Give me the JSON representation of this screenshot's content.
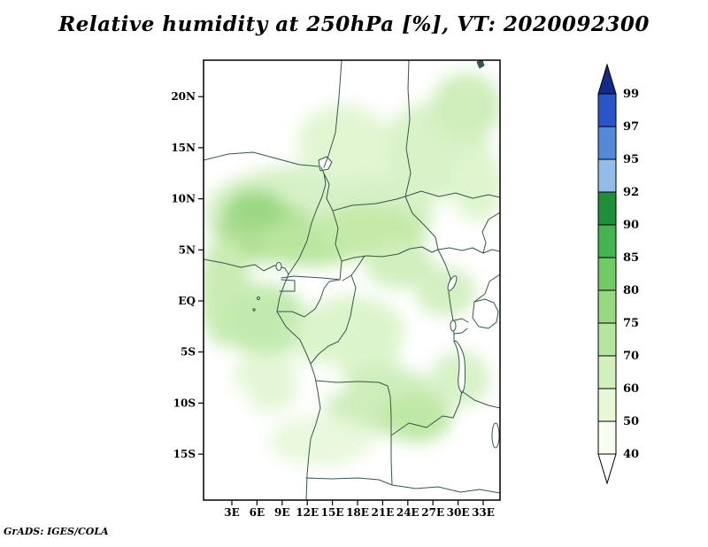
{
  "header": {
    "title": "Relative humidity at 250hPa [%], VT: 2020092300"
  },
  "footer": {
    "credit": "GrADS: IGES/COLA"
  },
  "chart_data": {
    "type": "heatmap",
    "title": "Relative humidity at 250hPa [%], VT: 2020092300",
    "variable": "Relative humidity",
    "level": "250hPa",
    "units": "%",
    "valid_time": "2020092300",
    "x_axis": {
      "tick_labels": [
        "3E",
        "6E",
        "9E",
        "12E",
        "15E",
        "18E",
        "21E",
        "24E",
        "27E",
        "30E",
        "33E"
      ],
      "tick_lons": [
        3,
        6,
        9,
        12,
        15,
        18,
        21,
        24,
        27,
        30,
        33
      ]
    },
    "y_axis": {
      "tick_labels": [
        "20N",
        "15N",
        "10N",
        "5N",
        "EQ",
        "5S",
        "10S",
        "15S"
      ],
      "tick_lats": [
        20,
        15,
        10,
        5,
        0,
        -5,
        -10,
        -15
      ]
    },
    "colorbar": {
      "position": "right",
      "tick_labels": [
        "99",
        "97",
        "95",
        "92",
        "90",
        "85",
        "80",
        "75",
        "70",
        "60",
        "50",
        "40"
      ],
      "levels": [
        99,
        97,
        95,
        92,
        90,
        85,
        80,
        75,
        70,
        60,
        50,
        40
      ],
      "colors_top_to_bottom": [
        "#122a8c",
        "#2a55c8",
        "#5489d8",
        "#93bde8",
        "#1f9038",
        "#46b44e",
        "#71cb64",
        "#97d981",
        "#b6e69d",
        "#d2f0bc",
        "#e7f7d8",
        "#f7fdf1",
        "#ffffff"
      ]
    }
  }
}
